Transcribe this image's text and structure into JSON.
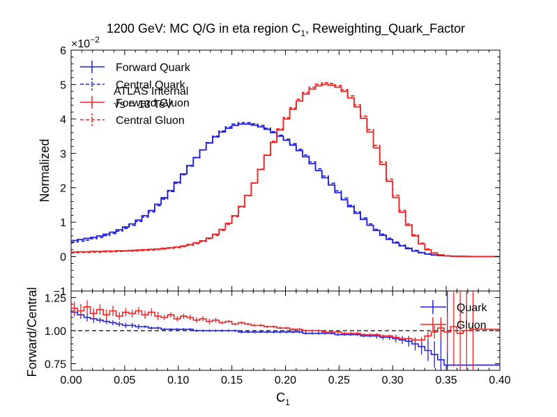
{
  "chart_data": {
    "type": "line",
    "title": "1200 GeV: MC Q/G in eta region C",
    "title_sub": "1",
    "title_suffix": ", Reweighting_Quark_Factor",
    "x_label": "C",
    "x_label_sub": "1",
    "x_range": [
      0.0,
      0.4
    ],
    "x_ticks": [
      "0.00",
      "0.05",
      "0.10",
      "0.15",
      "0.20",
      "0.25",
      "0.30",
      "0.35",
      "0.40"
    ],
    "upper": {
      "y_label": "Normalized",
      "y_range": [
        -1,
        6
      ],
      "y_ticks": [
        "−1",
        "0",
        "1",
        "2",
        "3",
        "4",
        "5",
        "6"
      ],
      "y_multiplier_base": "×10",
      "y_multiplier_exp": "−2",
      "annotations": [
        "ATLAS Internal",
        "√s = 13 TeV"
      ],
      "legend": [
        "Forward Quark",
        "Central Quark",
        "Forward Gluon",
        "Central Gluon"
      ],
      "series": [
        {
          "name": "Forward Quark",
          "color": "#1f1fdd",
          "style": "solid",
          "values": [
            0.47,
            0.5,
            0.53,
            0.56,
            0.6,
            0.65,
            0.71,
            0.78,
            0.86,
            0.95,
            1.06,
            1.19,
            1.34,
            1.52,
            1.71,
            1.92,
            2.16,
            2.4,
            2.65,
            2.88,
            3.1,
            3.3,
            3.48,
            3.62,
            3.73,
            3.81,
            3.85,
            3.85,
            3.82,
            3.77,
            3.7,
            3.6,
            3.5,
            3.38,
            3.24,
            3.08,
            2.9,
            2.7,
            2.5,
            2.29,
            2.08,
            1.86,
            1.65,
            1.45,
            1.26,
            1.08,
            0.91,
            0.76,
            0.62,
            0.5,
            0.4,
            0.31,
            0.23,
            0.16,
            0.11,
            0.07,
            0.045,
            0.03,
            0.02,
            0.012,
            0.008,
            0.005,
            0.003,
            0.002
          ]
        },
        {
          "name": "Central Quark",
          "color": "#1f1fdd",
          "style": "dashed",
          "values": [
            0.42,
            0.45,
            0.48,
            0.52,
            0.56,
            0.61,
            0.67,
            0.74,
            0.82,
            0.91,
            1.02,
            1.15,
            1.3,
            1.48,
            1.67,
            1.89,
            2.13,
            2.38,
            2.63,
            2.87,
            3.1,
            3.31,
            3.5,
            3.65,
            3.77,
            3.85,
            3.89,
            3.89,
            3.86,
            3.81,
            3.73,
            3.63,
            3.53,
            3.41,
            3.28,
            3.12,
            2.95,
            2.75,
            2.55,
            2.34,
            2.13,
            1.91,
            1.7,
            1.49,
            1.3,
            1.12,
            0.95,
            0.79,
            0.65,
            0.53,
            0.42,
            0.33,
            0.25,
            0.18,
            0.12,
            0.08,
            0.05,
            0.033,
            0.022,
            0.013,
            0.009,
            0.005,
            0.003,
            0.002
          ]
        },
        {
          "name": "Forward Gluon",
          "color": "#ee2222",
          "style": "solid",
          "values": [
            0.13,
            0.14,
            0.14,
            0.15,
            0.15,
            0.16,
            0.16,
            0.17,
            0.17,
            0.18,
            0.19,
            0.2,
            0.21,
            0.22,
            0.24,
            0.26,
            0.28,
            0.31,
            0.35,
            0.4,
            0.46,
            0.54,
            0.65,
            0.79,
            0.97,
            1.19,
            1.46,
            1.78,
            2.14,
            2.53,
            2.94,
            3.32,
            3.68,
            4.0,
            4.28,
            4.52,
            4.72,
            4.87,
            4.96,
            5.0,
            4.98,
            4.92,
            4.8,
            4.61,
            4.35,
            4.02,
            3.62,
            3.16,
            2.68,
            2.19,
            1.72,
            1.29,
            0.91,
            0.6,
            0.37,
            0.2,
            0.1,
            0.05,
            0.022,
            0.01,
            0.005,
            0.002,
            0.001,
            0.0
          ]
        },
        {
          "name": "Central Gluon",
          "color": "#ee2222",
          "style": "dashed",
          "values": [
            0.11,
            0.12,
            0.12,
            0.13,
            0.13,
            0.14,
            0.14,
            0.15,
            0.16,
            0.16,
            0.17,
            0.18,
            0.19,
            0.21,
            0.22,
            0.24,
            0.26,
            0.29,
            0.33,
            0.38,
            0.44,
            0.52,
            0.62,
            0.76,
            0.94,
            1.16,
            1.44,
            1.77,
            2.14,
            2.54,
            2.95,
            3.35,
            3.71,
            4.04,
            4.32,
            4.57,
            4.77,
            4.92,
            5.01,
            5.05,
            5.03,
            4.97,
            4.85,
            4.67,
            4.41,
            4.08,
            3.69,
            3.23,
            2.75,
            2.25,
            1.78,
            1.34,
            0.95,
            0.63,
            0.39,
            0.22,
            0.11,
            0.055,
            0.025,
            0.011,
            0.005,
            0.002,
            0.001,
            0.0
          ]
        }
      ]
    },
    "lower": {
      "y_label": "Forward/Central",
      "y_range": [
        0.7,
        1.3
      ],
      "y_ticks": [
        "0.75",
        "1.00",
        "1.25"
      ],
      "reference_line": 1.0,
      "legend": [
        "Quark",
        "Gluon"
      ],
      "series": [
        {
          "name": "Quark",
          "color": "#1f1fdd",
          "values": [
            1.14,
            1.12,
            1.1,
            1.09,
            1.08,
            1.07,
            1.06,
            1.05,
            1.04,
            1.04,
            1.03,
            1.03,
            1.02,
            1.02,
            1.01,
            1.01,
            1.01,
            1.01,
            1.01,
            1.0,
            1.0,
            1.0,
            1.0,
            1.0,
            1.0,
            1.0,
            0.99,
            0.99,
            0.99,
            0.99,
            0.99,
            0.99,
            0.99,
            0.99,
            0.99,
            0.99,
            0.98,
            0.98,
            0.98,
            0.98,
            0.98,
            0.97,
            0.97,
            0.97,
            0.97,
            0.96,
            0.96,
            0.96,
            0.95,
            0.95,
            0.94,
            0.93,
            0.92,
            0.9,
            0.88,
            0.85,
            0.82,
            0.78,
            0.74
          ],
          "errors": [
            0.03,
            0.03,
            0.03,
            0.03,
            0.02,
            0.02,
            0.02,
            0.02,
            0.02,
            0.02,
            0.02,
            0.01,
            0.01,
            0.01,
            0.01,
            0.01,
            0.01,
            0.01,
            0.01,
            0.01,
            0.01,
            0.01,
            0.01,
            0.01,
            0.01,
            0.01,
            0.01,
            0.01,
            0.01,
            0.01,
            0.01,
            0.01,
            0.01,
            0.01,
            0.01,
            0.01,
            0.01,
            0.01,
            0.01,
            0.01,
            0.01,
            0.01,
            0.01,
            0.01,
            0.01,
            0.01,
            0.01,
            0.02,
            0.02,
            0.02,
            0.03,
            0.03,
            0.04,
            0.05,
            0.06,
            0.08,
            0.1,
            0.3,
            0.6
          ]
        },
        {
          "name": "Gluon",
          "color": "#ee2222",
          "values": [
            1.17,
            1.15,
            1.18,
            1.13,
            1.16,
            1.12,
            1.15,
            1.11,
            1.14,
            1.13,
            1.15,
            1.12,
            1.14,
            1.11,
            1.1,
            1.12,
            1.09,
            1.11,
            1.1,
            1.08,
            1.09,
            1.07,
            1.08,
            1.06,
            1.07,
            1.05,
            1.06,
            1.05,
            1.04,
            1.04,
            1.03,
            1.03,
            1.02,
            1.02,
            1.01,
            1.01,
            1.0,
            1.0,
            1.0,
            0.99,
            0.99,
            0.99,
            0.98,
            0.98,
            0.98,
            0.97,
            0.97,
            0.97,
            0.96,
            0.96,
            0.95,
            0.94,
            0.94,
            0.93,
            0.93,
            0.96,
            0.99,
            1.02,
            0.99,
            1.03,
            0.98,
            1.0,
            1.01
          ],
          "errors": [
            0.05,
            0.05,
            0.05,
            0.04,
            0.04,
            0.04,
            0.04,
            0.03,
            0.03,
            0.03,
            0.03,
            0.03,
            0.03,
            0.03,
            0.02,
            0.02,
            0.02,
            0.02,
            0.02,
            0.02,
            0.02,
            0.02,
            0.02,
            0.01,
            0.01,
            0.01,
            0.01,
            0.01,
            0.01,
            0.01,
            0.01,
            0.01,
            0.01,
            0.01,
            0.01,
            0.01,
            0.01,
            0.01,
            0.01,
            0.01,
            0.01,
            0.01,
            0.01,
            0.01,
            0.01,
            0.01,
            0.01,
            0.01,
            0.01,
            0.01,
            0.01,
            0.01,
            0.01,
            0.02,
            0.02,
            0.03,
            0.05,
            0.08,
            0.15,
            0.3,
            0.6,
            0.8,
            0.8
          ]
        }
      ]
    }
  }
}
